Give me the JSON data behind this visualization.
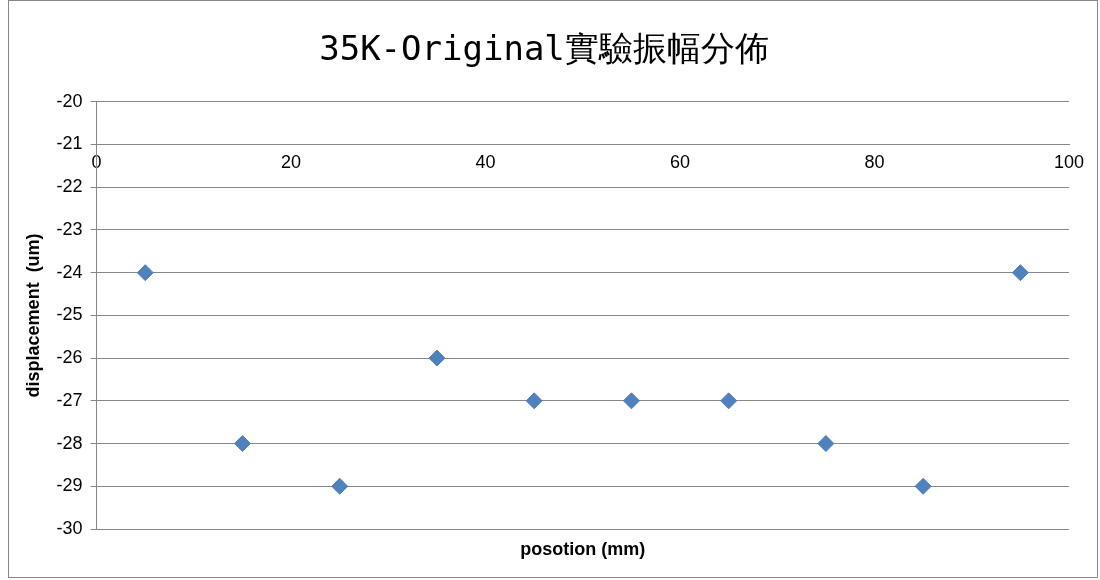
{
  "chart_data": {
    "type": "scatter",
    "title": "35K-Original實驗振幅分佈",
    "xlabel": "posotion (mm)",
    "ylabel": "displacement  (um)",
    "x": [
      5,
      15,
      25,
      35,
      45,
      55,
      65,
      75,
      85,
      95
    ],
    "series": [
      {
        "color": "#4f81bd",
        "values": [
          -24,
          -28,
          -29,
          -26,
          -27,
          -27,
          -27,
          -28,
          -29,
          -24
        ]
      }
    ],
    "xlim": [
      0,
      100
    ],
    "xticks": [
      0,
      20,
      40,
      60,
      80,
      100
    ],
    "ylim": [
      -30,
      -20
    ],
    "yticks": [
      -30,
      -29,
      -28,
      -27,
      -26,
      -25,
      -24,
      -23,
      -22,
      -21,
      -20
    ],
    "grid": "y",
    "marker": "diamond",
    "legend": false
  }
}
